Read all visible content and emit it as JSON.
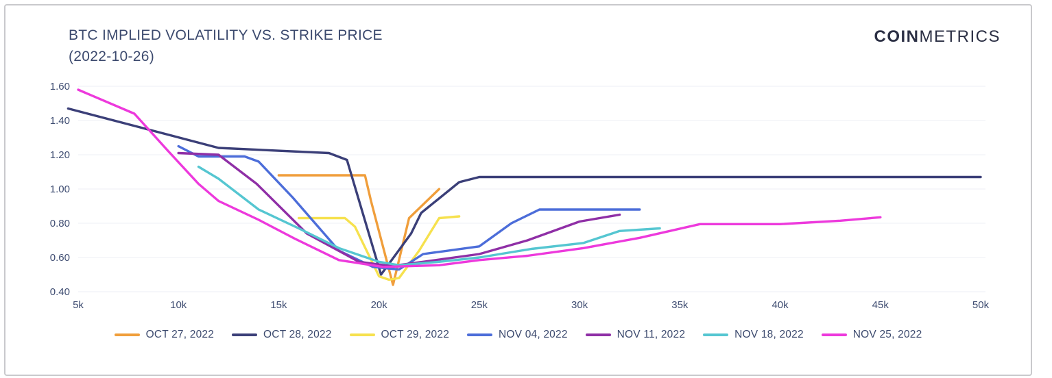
{
  "header": {
    "title_line1": "BTC IMPLIED VOLATILITY VS. STRIKE PRICE",
    "title_line2": "(2022-10-26)",
    "brand_bold": "COIN",
    "brand_light": "METRICS"
  },
  "colors": {
    "title_text": "#3c4a6e",
    "axis_text": "#3e4c71",
    "gridline": "#f1f2f6",
    "card_border": "#c9c9cc"
  },
  "chart_data": {
    "type": "line",
    "title": "BTC IMPLIED VOLATILITY VS. STRIKE PRICE (2022-10-26)",
    "xlabel": "",
    "ylabel": "",
    "x_unit": "thousand USD strike",
    "xlim": [
      4.5,
      50.5
    ],
    "ylim": [
      0.4,
      1.6
    ],
    "grid": "horizontal",
    "legend_position": "bottom",
    "x_ticks": [
      {
        "v": 5,
        "label": "5k"
      },
      {
        "v": 10,
        "label": "10k"
      },
      {
        "v": 15,
        "label": "15k"
      },
      {
        "v": 20,
        "label": "20k"
      },
      {
        "v": 25,
        "label": "25k"
      },
      {
        "v": 30,
        "label": "30k"
      },
      {
        "v": 35,
        "label": "35k"
      },
      {
        "v": 40,
        "label": "40k"
      },
      {
        "v": 45,
        "label": "45k"
      },
      {
        "v": 50,
        "label": "50k"
      }
    ],
    "y_ticks": [
      {
        "v": 0.4,
        "label": "0.40"
      },
      {
        "v": 0.6,
        "label": "0.60"
      },
      {
        "v": 0.8,
        "label": "0.80"
      },
      {
        "v": 1.0,
        "label": "1.00"
      },
      {
        "v": 1.2,
        "label": "1.20"
      },
      {
        "v": 1.4,
        "label": "1.40"
      },
      {
        "v": 1.6,
        "label": "1.60"
      }
    ],
    "series": [
      {
        "name": "OCT 27, 2022",
        "color": "#F09E3B",
        "x": [
          15,
          19.3,
          19.6,
          20.7,
          21.5,
          23
        ],
        "y": [
          1.08,
          1.08,
          0.93,
          0.44,
          0.83,
          1.0
        ]
      },
      {
        "name": "OCT 28, 2022",
        "color": "#3B3F78",
        "x": [
          4.5,
          12,
          17.5,
          18.4,
          20.1,
          21.6,
          22.1,
          24,
          25,
          50
        ],
        "y": [
          1.47,
          1.24,
          1.21,
          1.17,
          0.5,
          0.74,
          0.86,
          1.04,
          1.07,
          1.07
        ]
      },
      {
        "name": "OCT 29, 2022",
        "color": "#F6E14E",
        "x": [
          16,
          18.3,
          18.8,
          20,
          20.5,
          21,
          22,
          23,
          24
        ],
        "y": [
          0.83,
          0.83,
          0.78,
          0.49,
          0.47,
          0.48,
          0.64,
          0.83,
          0.84
        ]
      },
      {
        "name": "NOV 04, 2022",
        "color": "#4C6DD9",
        "x": [
          10,
          11,
          13.3,
          14,
          15.7,
          18,
          19.7,
          21,
          22.2,
          25,
          26.6,
          28,
          33
        ],
        "y": [
          1.25,
          1.19,
          1.19,
          1.16,
          0.95,
          0.64,
          0.545,
          0.53,
          0.62,
          0.665,
          0.8,
          0.88,
          0.88
        ]
      },
      {
        "name": "NOV 11, 2022",
        "color": "#8F2FA6",
        "x": [
          10,
          12,
          13.9,
          16.4,
          19,
          20.6,
          22.2,
          25,
          27.4,
          30,
          32
        ],
        "y": [
          1.21,
          1.2,
          1.03,
          0.74,
          0.575,
          0.55,
          0.575,
          0.62,
          0.7,
          0.81,
          0.85
        ]
      },
      {
        "name": "NOV 18, 2022",
        "color": "#55C6D1",
        "x": [
          11,
          12,
          14,
          16,
          18,
          20,
          21,
          23,
          25,
          27.6,
          30.2,
          32,
          34
        ],
        "y": [
          1.13,
          1.06,
          0.88,
          0.77,
          0.655,
          0.575,
          0.555,
          0.575,
          0.6,
          0.65,
          0.685,
          0.755,
          0.77
        ]
      },
      {
        "name": "NOV 25, 2022",
        "color": "#ED39DC",
        "x": [
          5,
          7.8,
          9.5,
          11,
          12,
          14,
          15.8,
          18,
          20.2,
          23,
          25,
          27.4,
          30.2,
          33,
          36,
          40,
          43,
          45
        ],
        "y": [
          1.58,
          1.44,
          1.22,
          1.03,
          0.93,
          0.82,
          0.71,
          0.585,
          0.545,
          0.555,
          0.585,
          0.61,
          0.655,
          0.715,
          0.795,
          0.795,
          0.815,
          0.835
        ]
      }
    ]
  }
}
